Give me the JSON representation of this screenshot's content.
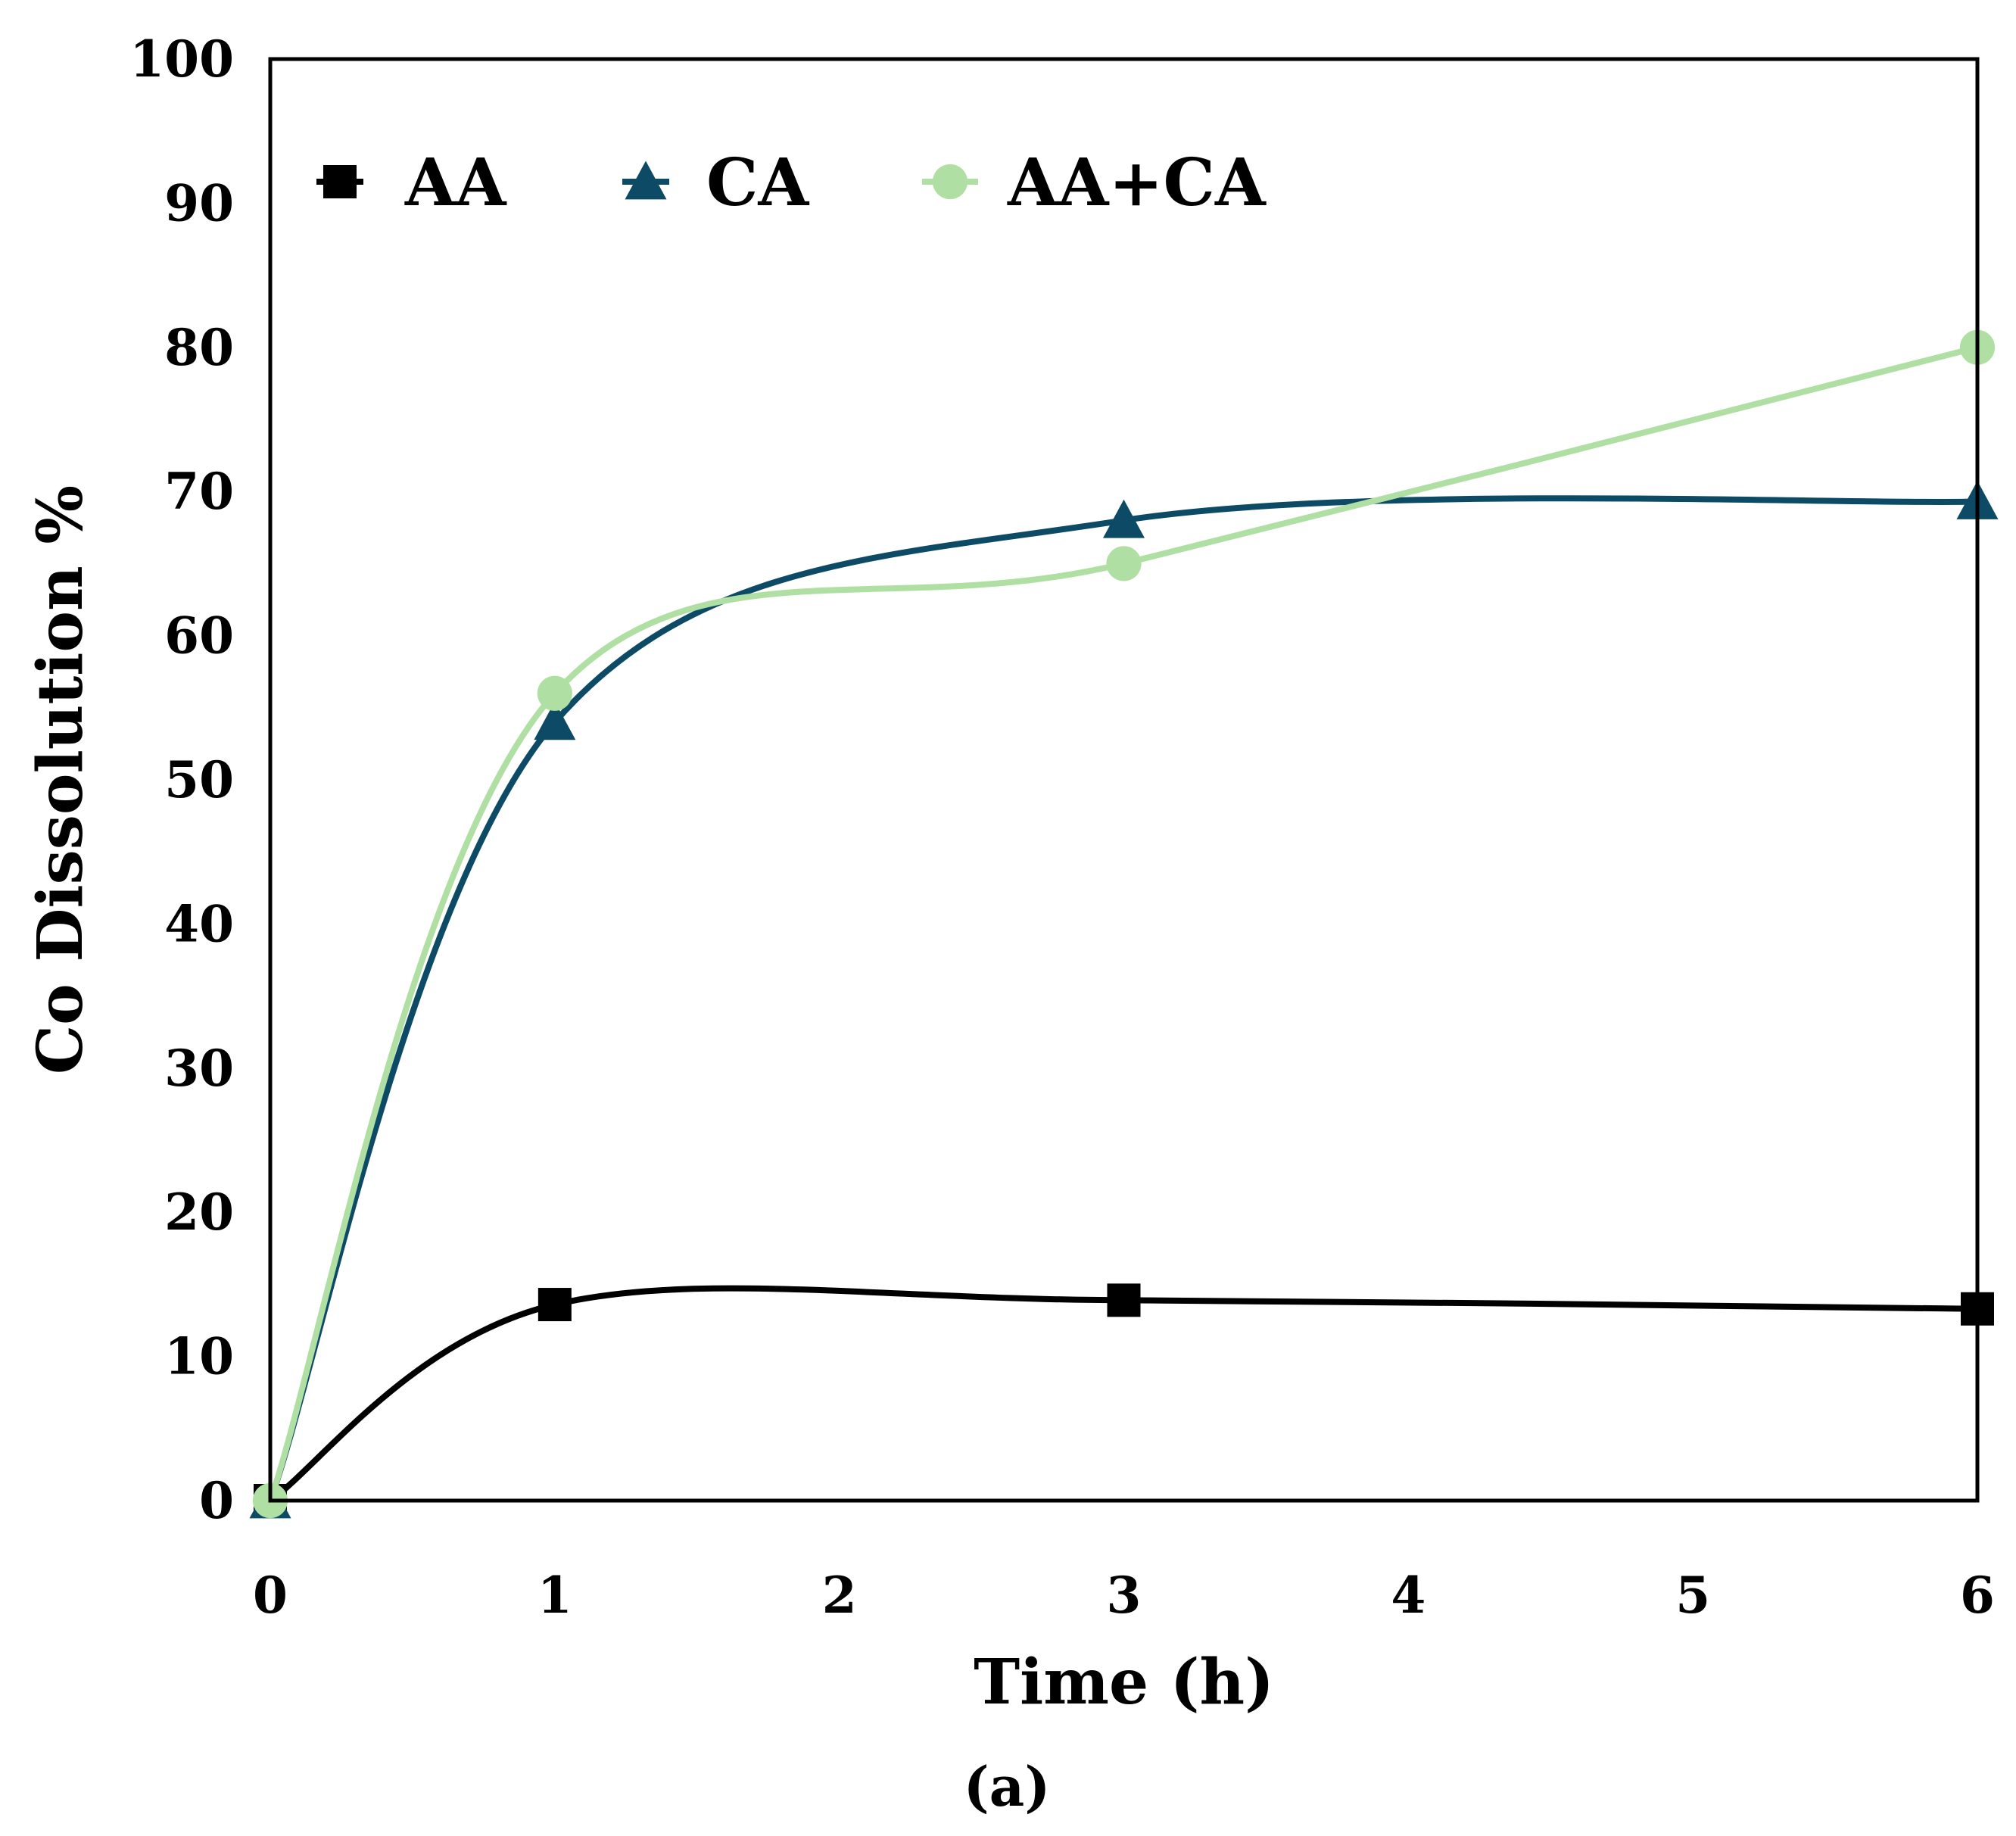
{
  "chart_data": {
    "type": "line",
    "title": "",
    "xlabel": "Time (h)",
    "ylabel": "Co  Dissolution %",
    "caption": "(a)",
    "xlim": [
      0,
      6
    ],
    "ylim": [
      0,
      100
    ],
    "xticks": [
      "0",
      "1",
      "2",
      "3",
      "4",
      "5",
      "6"
    ],
    "yticks": [
      "0",
      "10",
      "20",
      "30",
      "40",
      "50",
      "60",
      "70",
      "80",
      "90",
      "100"
    ],
    "grid": false,
    "legend_position": "top",
    "series": [
      {
        "name": "AA",
        "marker": "square",
        "color": "#000000",
        "x": [
          0,
          1,
          3,
          6
        ],
        "y": [
          0,
          13.6,
          13.9,
          13.3
        ]
      },
      {
        "name": "CA",
        "marker": "triangle",
        "color": "#0d4a66",
        "x": [
          0,
          1,
          3,
          6
        ],
        "y": [
          0,
          54,
          68,
          69.3
        ]
      },
      {
        "name": "AA+CA",
        "marker": "circle",
        "color": "#b0dfa3",
        "x": [
          0,
          1,
          3,
          6
        ],
        "y": [
          0,
          56,
          65,
          80
        ]
      }
    ]
  }
}
